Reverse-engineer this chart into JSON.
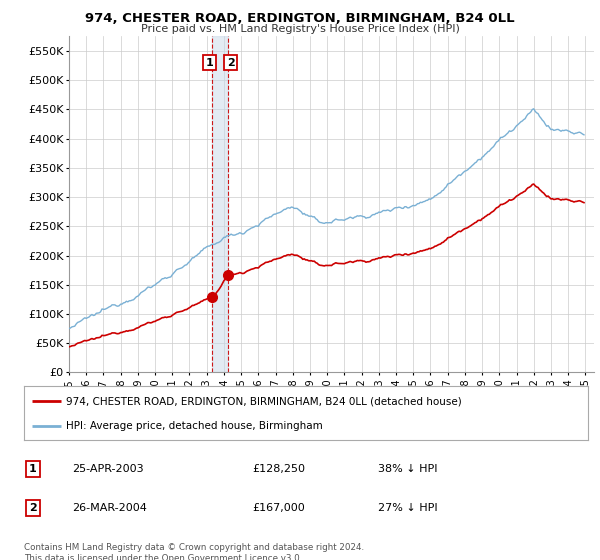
{
  "title": "974, CHESTER ROAD, ERDINGTON, BIRMINGHAM, B24 0LL",
  "subtitle": "Price paid vs. HM Land Registry's House Price Index (HPI)",
  "ylabel_ticks": [
    "£0",
    "£50K",
    "£100K",
    "£150K",
    "£200K",
    "£250K",
    "£300K",
    "£350K",
    "£400K",
    "£450K",
    "£500K",
    "£550K"
  ],
  "ytick_values": [
    0,
    50000,
    100000,
    150000,
    200000,
    250000,
    300000,
    350000,
    400000,
    450000,
    500000,
    550000
  ],
  "xmin": 1995.0,
  "xmax": 2025.5,
  "ymin": 0,
  "ymax": 575000,
  "transaction1_year": 2003.32,
  "transaction1_price": 128250,
  "transaction2_year": 2004.24,
  "transaction2_price": 167000,
  "red_line_color": "#cc0000",
  "blue_line_color": "#7ab0d4",
  "vline_color": "#cc0000",
  "shade_color": "#c8d8e8",
  "grid_color": "#cccccc",
  "background_color": "#ffffff",
  "legend_label_red": "974, CHESTER ROAD, ERDINGTON, BIRMINGHAM, B24 0LL (detached house)",
  "legend_label_blue": "HPI: Average price, detached house, Birmingham",
  "transactions": [
    {
      "num": 1,
      "date": "25-APR-2003",
      "price": "£128,250",
      "hpi": "38% ↓ HPI"
    },
    {
      "num": 2,
      "date": "26-MAR-2004",
      "price": "£167,000",
      "hpi": "27% ↓ HPI"
    }
  ],
  "footer": "Contains HM Land Registry data © Crown copyright and database right 2024.\nThis data is licensed under the Open Government Licence v3.0."
}
